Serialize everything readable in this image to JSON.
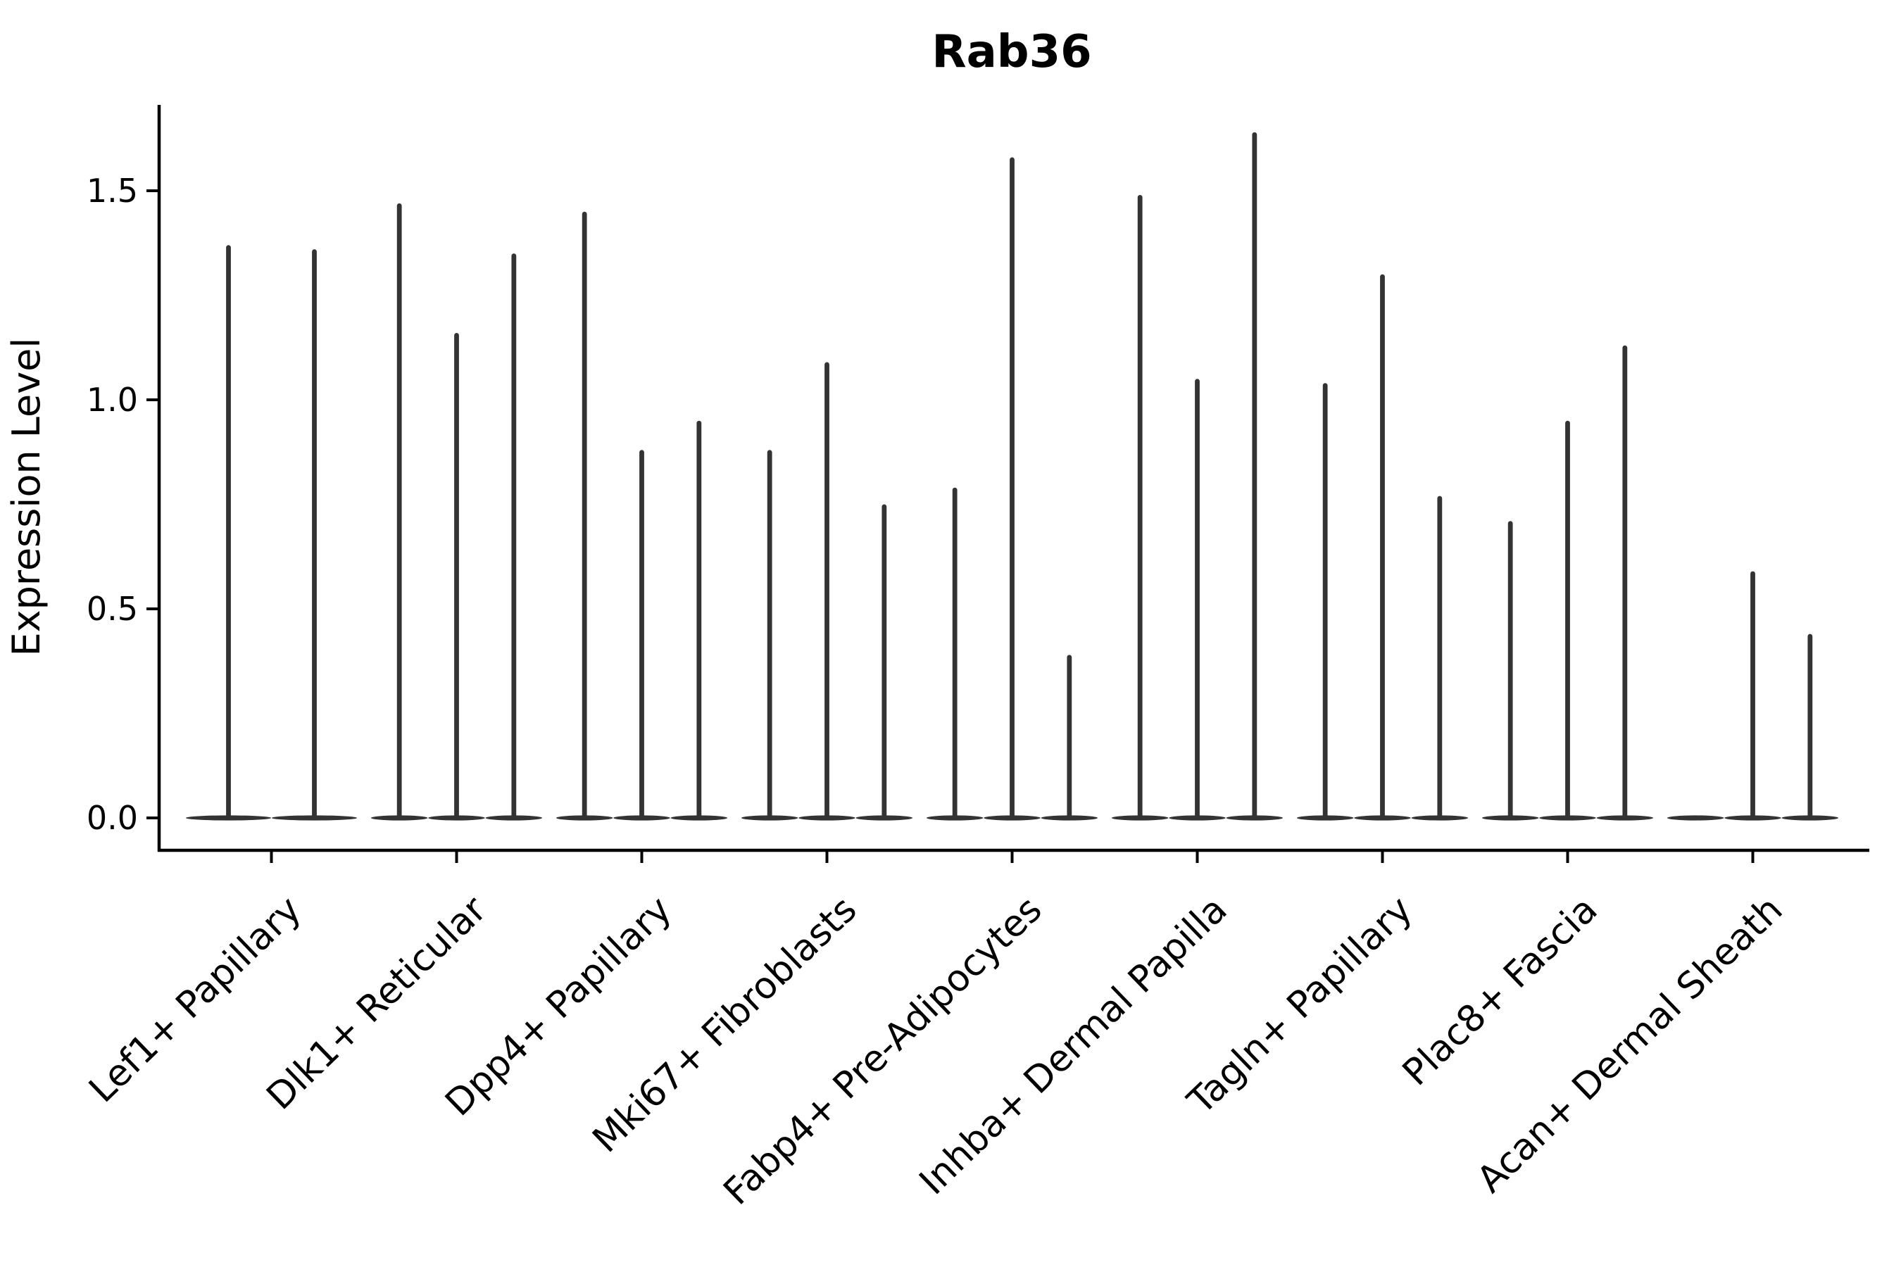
{
  "chart_data": {
    "type": "violin",
    "title": "Rab36",
    "xlabel": "",
    "ylabel": "Expression Level",
    "ytick_labels": [
      "0.0",
      "0.5",
      "1.0",
      "1.5"
    ],
    "ytick_values": [
      0.0,
      0.5,
      1.0,
      1.5
    ],
    "ylim": [
      -0.08,
      1.71
    ],
    "grid": false,
    "legend": false,
    "violin_shape_note": "zero-inflated: wide flat base at 0 with a single thin spike rising to the max value",
    "colors": {
      "violin_fill": "#333333",
      "axis": "#000000",
      "text": "#000000",
      "background": "#ffffff"
    },
    "categories": [
      "Lef1+ Papillary",
      "Dlk1+ Reticular",
      "Dpp4+ Papillary",
      "Mki67+ Fibroblasts",
      "Fabp4+ Pre-Adipocytes",
      "Inhba+ Dermal Papilla",
      "Tagln+ Papillary",
      "Plac8+ Fascia",
      "Acan+ Dermal Sheath"
    ],
    "groups": [
      {
        "category": "Lef1+ Papillary",
        "violins": 2,
        "max_expression": [
          1.37,
          1.36
        ]
      },
      {
        "category": "Dlk1+ Reticular",
        "violins": 3,
        "max_expression": [
          1.47,
          1.16,
          1.35
        ]
      },
      {
        "category": "Dpp4+ Papillary",
        "violins": 3,
        "max_expression": [
          1.45,
          0.88,
          0.95
        ]
      },
      {
        "category": "Mki67+ Fibroblasts",
        "violins": 3,
        "max_expression": [
          0.88,
          1.09,
          0.75
        ]
      },
      {
        "category": "Fabp4+ Pre-Adipocytes",
        "violins": 3,
        "max_expression": [
          0.79,
          1.58,
          0.39
        ]
      },
      {
        "category": "Inhba+ Dermal Papilla",
        "violins": 3,
        "max_expression": [
          1.49,
          1.05,
          1.64
        ]
      },
      {
        "category": "Tagln+ Papillary",
        "violins": 3,
        "max_expression": [
          1.04,
          1.3,
          0.77
        ]
      },
      {
        "category": "Plac8+ Fascia",
        "violins": 3,
        "max_expression": [
          0.71,
          0.95,
          1.13
        ]
      },
      {
        "category": "Acan+ Dermal Sheath",
        "violins": 3,
        "max_expression": [
          0.0,
          0.59,
          0.44
        ]
      }
    ]
  }
}
